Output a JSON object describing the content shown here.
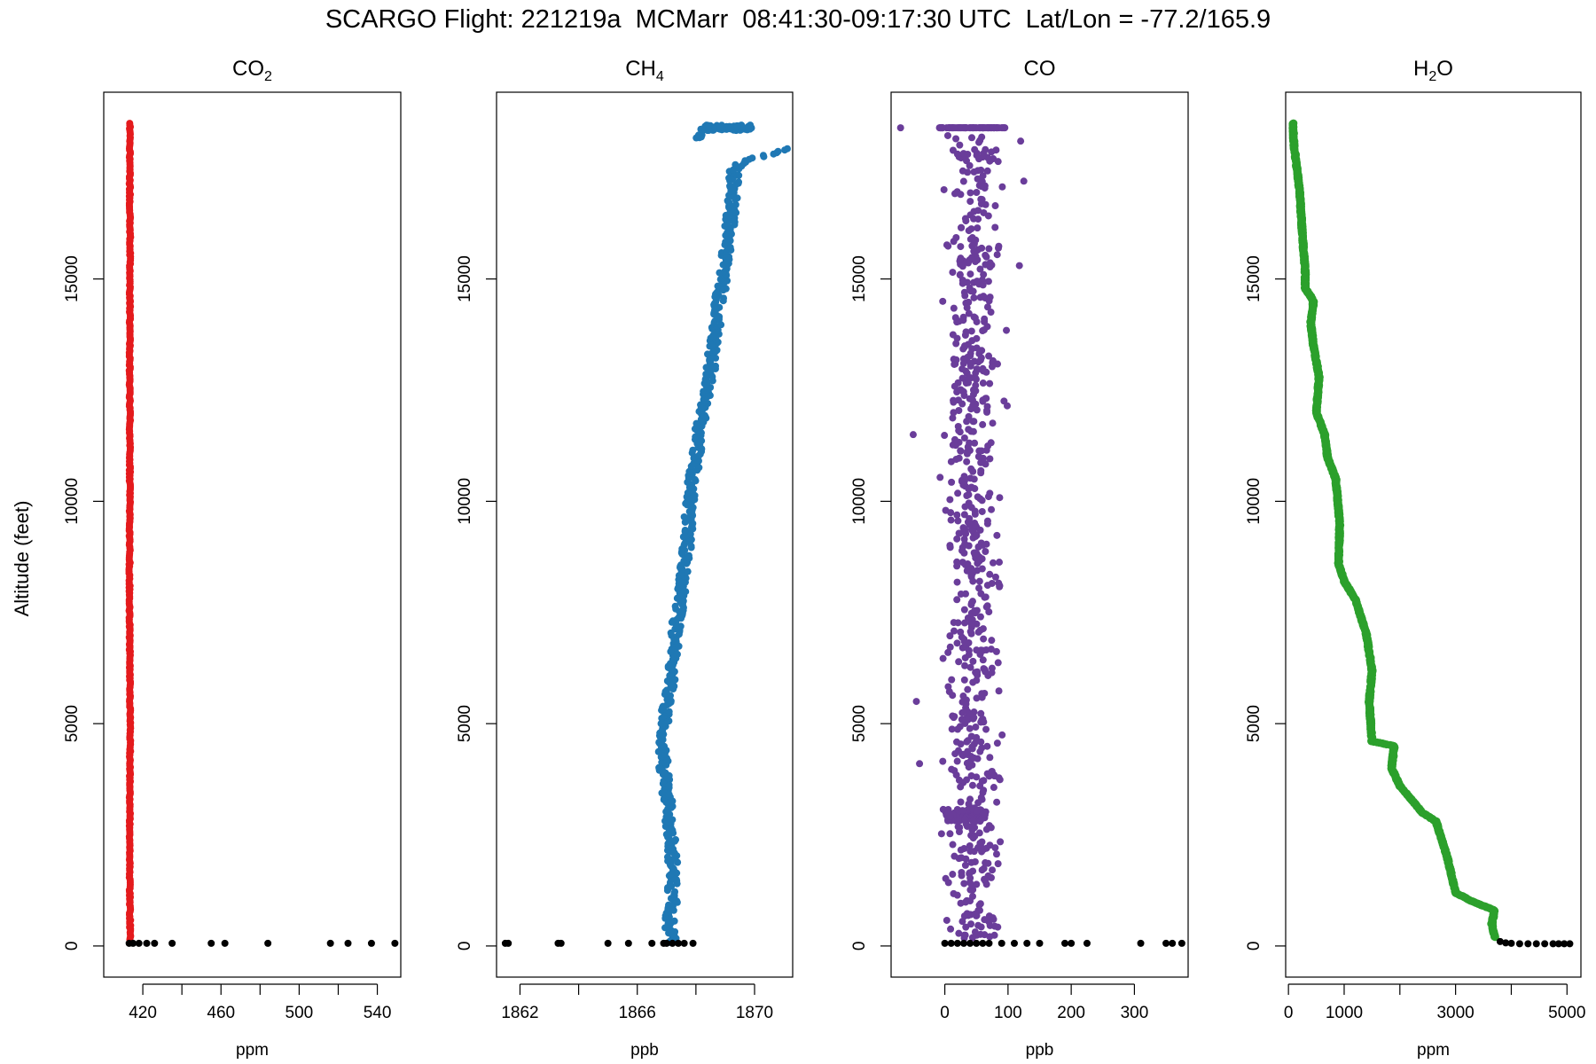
{
  "figure_title": "SCARGO Flight: 221219a  MCMarr  08:41:30-09:17:30 UTC  Lat/Lon = -77.2/165.9",
  "colors": {
    "co2": "#e41a1c",
    "ch4": "#1f78b4",
    "co": "#6a3d9a",
    "h2o": "#2ca02c",
    "surface": "#000000"
  },
  "chart_data": [
    {
      "type": "scatter",
      "title": "CO2",
      "title_main": "CO",
      "title_sub": "2",
      "title_tail": "",
      "xlabel": "ppm",
      "ylabel": "Altitude (feet)",
      "xlim": [
        400,
        552
      ],
      "ylim": [
        -700,
        19200
      ],
      "xticks": [
        420,
        440,
        460,
        480,
        500,
        520,
        540
      ],
      "xticklabels": [
        "420",
        "",
        "460",
        "",
        "500",
        "",
        "540"
      ],
      "yticks": [
        0,
        5000,
        10000,
        15000
      ],
      "yticklabels": [
        "0",
        "5000",
        "10000",
        "15000"
      ],
      "profile": [
        [
          413.5,
          100
        ],
        [
          413.3,
          2000
        ],
        [
          413.5,
          5000
        ],
        [
          413.2,
          8000
        ],
        [
          413.4,
          11000
        ],
        [
          413.3,
          13500
        ],
        [
          413.5,
          16000
        ],
        [
          413.3,
          17500
        ],
        [
          413.4,
          18500
        ]
      ],
      "surface_points": [
        [
          413.0,
          60
        ],
        [
          415.0,
          60
        ],
        [
          418.0,
          60
        ],
        [
          422.0,
          60
        ],
        [
          426.0,
          60
        ],
        [
          435.0,
          60
        ],
        [
          455.0,
          60
        ],
        [
          462.0,
          60
        ],
        [
          484.0,
          60
        ],
        [
          516.0,
          60
        ],
        [
          525.0,
          60
        ],
        [
          537.0,
          60
        ],
        [
          549.0,
          60
        ]
      ]
    },
    {
      "type": "scatter",
      "title": "CH4",
      "title_main": "CH",
      "title_sub": "4",
      "title_tail": "",
      "xlabel": "ppb",
      "ylabel": "",
      "xlim": [
        1861.2,
        1871.3
      ],
      "ylim": [
        -700,
        19200
      ],
      "xticks": [
        1862,
        1864,
        1866,
        1868,
        1870
      ],
      "xticklabels": [
        "1862",
        "",
        "1866",
        "",
        "1870"
      ],
      "yticks": [
        0,
        5000,
        10000,
        15000
      ],
      "yticklabels": [
        "0",
        "5000",
        "10000",
        "15000"
      ],
      "profile": [
        [
          1867.2,
          100
        ],
        [
          1867.1,
          500
        ],
        [
          1867.2,
          1000
        ],
        [
          1867.2,
          2000
        ],
        [
          1867.1,
          3000
        ],
        [
          1866.9,
          4000
        ],
        [
          1866.9,
          5000
        ],
        [
          1867.2,
          6000
        ],
        [
          1867.3,
          7000
        ],
        [
          1867.5,
          8000
        ],
        [
          1867.7,
          9000
        ],
        [
          1867.8,
          10000
        ],
        [
          1868.0,
          11000
        ],
        [
          1868.2,
          12000
        ],
        [
          1868.5,
          13000
        ],
        [
          1868.7,
          14000
        ],
        [
          1868.9,
          15000
        ],
        [
          1869.0,
          15500
        ],
        [
          1869.1,
          16000
        ],
        [
          1869.2,
          16500
        ],
        [
          1869.3,
          17000
        ],
        [
          1869.3,
          17500
        ],
        [
          1869.9,
          17700
        ],
        [
          1870.6,
          17800
        ],
        [
          1871.1,
          17950
        ]
      ],
      "plateau": {
        "x_min": 1868.0,
        "x_max": 1869.9,
        "altitude": 18400
      },
      "surface_points": [
        [
          1861.5,
          60
        ],
        [
          1861.6,
          60
        ],
        [
          1863.3,
          60
        ],
        [
          1863.4,
          60
        ],
        [
          1865.0,
          60
        ],
        [
          1865.7,
          60
        ],
        [
          1866.5,
          60
        ],
        [
          1866.9,
          60
        ],
        [
          1867.0,
          60
        ],
        [
          1867.2,
          60
        ],
        [
          1867.4,
          60
        ],
        [
          1867.6,
          60
        ],
        [
          1867.9,
          60
        ]
      ]
    },
    {
      "type": "scatter",
      "title": "CO",
      "title_main": "CO",
      "title_sub": "",
      "title_tail": "",
      "xlabel": "ppb",
      "ylabel": "",
      "xlim": [
        -85,
        385
      ],
      "ylim": [
        -700,
        19200
      ],
      "xticks": [
        0,
        100,
        200,
        300
      ],
      "xticklabels": [
        "0",
        "100",
        "200",
        "300"
      ],
      "yticks": [
        0,
        5000,
        10000,
        15000
      ],
      "yticklabels": [
        "0",
        "5000",
        "10000",
        "15000"
      ],
      "cloud": {
        "x_min": -15,
        "x_max": 105,
        "outliers": [
          [
            -70,
            18400
          ],
          [
            -50,
            11500
          ],
          [
            -45,
            5500
          ],
          [
            -40,
            4100
          ],
          [
            120,
            18100
          ],
          [
            125,
            17200
          ],
          [
            118,
            15300
          ]
        ]
      },
      "plateau": {
        "x_min": -10,
        "x_max": 100,
        "altitude": 18400
      },
      "surface_points": [
        [
          0,
          60
        ],
        [
          10,
          60
        ],
        [
          20,
          60
        ],
        [
          30,
          60
        ],
        [
          40,
          60
        ],
        [
          50,
          60
        ],
        [
          60,
          60
        ],
        [
          70,
          60
        ],
        [
          90,
          60
        ],
        [
          110,
          60
        ],
        [
          130,
          60
        ],
        [
          150,
          60
        ],
        [
          190,
          60
        ],
        [
          200,
          60
        ],
        [
          225,
          60
        ],
        [
          310,
          60
        ],
        [
          350,
          60
        ],
        [
          360,
          60
        ],
        [
          375,
          60
        ]
      ]
    },
    {
      "type": "scatter",
      "title": "H2O",
      "title_main": "H",
      "title_sub": "2",
      "title_tail": "O",
      "xlabel": "ppm",
      "ylabel": "",
      "xlim": [
        -50,
        5250
      ],
      "ylim": [
        -700,
        19200
      ],
      "xticks": [
        0,
        1000,
        2000,
        3000,
        4000,
        5000
      ],
      "xticklabels": [
        "0",
        "1000",
        "",
        "3000",
        "",
        "5000"
      ],
      "yticks": [
        0,
        5000,
        10000,
        15000
      ],
      "yticklabels": [
        "0",
        "5000",
        "10000",
        "15000"
      ],
      "profile": [
        [
          3700,
          200
        ],
        [
          3650,
          500
        ],
        [
          3700,
          800
        ],
        [
          3300,
          1000
        ],
        [
          3000,
          1200
        ],
        [
          2850,
          2000
        ],
        [
          2650,
          2800
        ],
        [
          2400,
          3000
        ],
        [
          2000,
          3600
        ],
        [
          1850,
          4000
        ],
        [
          1900,
          4500
        ],
        [
          1500,
          4600
        ],
        [
          1450,
          5500
        ],
        [
          1500,
          6200
        ],
        [
          1400,
          7000
        ],
        [
          1200,
          7800
        ],
        [
          1000,
          8200
        ],
        [
          900,
          8600
        ],
        [
          920,
          9500
        ],
        [
          850,
          10500
        ],
        [
          700,
          11000
        ],
        [
          650,
          11500
        ],
        [
          500,
          12000
        ],
        [
          550,
          12800
        ],
        [
          450,
          13500
        ],
        [
          400,
          14000
        ],
        [
          450,
          14500
        ],
        [
          300,
          14800
        ],
        [
          300,
          15200
        ],
        [
          250,
          16000
        ],
        [
          200,
          17000
        ],
        [
          150,
          17500
        ],
        [
          100,
          18000
        ],
        [
          80,
          18500
        ]
      ],
      "surface_points": [
        [
          3800,
          100
        ],
        [
          3900,
          70
        ],
        [
          4000,
          60
        ],
        [
          4150,
          50
        ],
        [
          4300,
          50
        ],
        [
          4450,
          50
        ],
        [
          4600,
          50
        ],
        [
          4750,
          50
        ],
        [
          4850,
          50
        ],
        [
          4950,
          50
        ],
        [
          5050,
          50
        ]
      ]
    }
  ]
}
